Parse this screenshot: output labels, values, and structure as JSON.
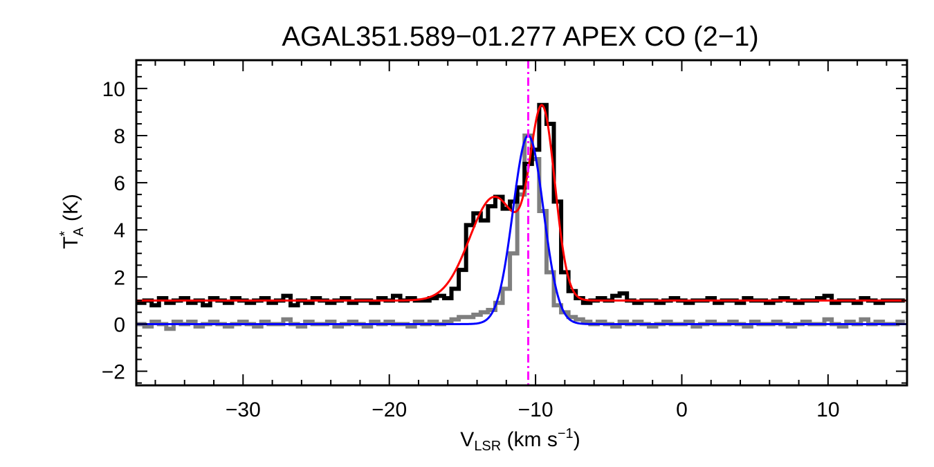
{
  "chart_data": {
    "type": "line",
    "title": "AGAL351.589−01.277  APEX CO (2−1)",
    "xlabel": {
      "main": "V",
      "sub": "LSR",
      "rest": " (km s",
      "sup": "−1",
      "end": ")"
    },
    "ylabel": {
      "main": "T",
      "sup": "*",
      "sub": "A",
      "rest": " (K)"
    },
    "xlim": [
      -37.3,
      15.4
    ],
    "ylim": [
      -2.6,
      11.2
    ],
    "xticks": [
      -30,
      -20,
      -10,
      0,
      10
    ],
    "xtick_labels": [
      "−30",
      "−20",
      "−10",
      "0",
      "10"
    ],
    "yticks": [
      -2,
      0,
      2,
      4,
      6,
      8,
      10
    ],
    "ytick_labels": [
      "−2",
      "0",
      "2",
      "4",
      "6",
      "8",
      "10"
    ],
    "grid": false,
    "velocity_start_kms": -37,
    "channel_width_kms": 0.5,
    "series": [
      {
        "style": "histogram",
        "color": "#000000",
        "values": [
          0.9,
          1.0,
          0.8,
          1.1,
          0.9,
          1.0,
          1.1,
          0.9,
          1.0,
          0.8,
          1.1,
          1.0,
          0.9,
          1.1,
          1.0,
          0.9,
          1.0,
          1.1,
          0.9,
          1.0,
          1.2,
          0.8,
          1.0,
          0.9,
          1.1,
          1.0,
          0.9,
          1.0,
          1.1,
          0.9,
          1.0,
          1.0,
          0.9,
          1.1,
          1.0,
          1.2,
          1.0,
          1.1,
          1.0,
          1.0,
          1.1,
          1.2,
          1.1,
          1.5,
          2.3,
          4.2,
          4.7,
          4.4,
          5.0,
          5.4,
          4.9,
          5.2,
          5.8,
          6.8,
          7.4,
          9.3,
          8.5,
          5.2,
          2.2,
          1.4,
          1.1,
          0.9,
          1.0,
          1.1,
          1.0,
          1.2,
          1.3,
          1.0,
          0.9,
          1.0,
          1.0,
          0.9,
          1.0,
          1.1,
          1.0,
          0.9,
          1.0,
          1.0,
          1.1,
          0.9,
          1.0,
          1.0,
          0.9,
          1.1,
          1.0,
          1.0,
          0.9,
          1.0,
          1.1,
          1.0,
          0.9,
          1.0,
          1.0,
          1.1,
          1.2,
          0.9,
          1.0,
          1.0,
          0.9,
          1.1,
          1.0,
          0.9,
          1.0,
          1.0,
          1.0
        ]
      },
      {
        "style": "histogram",
        "color": "#7f7f7f",
        "values": [
          0.0,
          -0.1,
          0.1,
          0.0,
          -0.2,
          0.1,
          0.0,
          0.1,
          -0.1,
          0.0,
          0.1,
          0.0,
          -0.1,
          0.0,
          0.1,
          0.0,
          -0.1,
          0.1,
          0.0,
          0.0,
          0.2,
          0.0,
          -0.1,
          0.1,
          0.0,
          0.0,
          0.1,
          -0.1,
          0.0,
          0.1,
          0.0,
          -0.1,
          0.1,
          0.0,
          0.1,
          0.0,
          0.0,
          -0.1,
          0.1,
          0.0,
          0.1,
          0.0,
          0.1,
          0.2,
          0.3,
          0.3,
          0.4,
          0.5,
          0.6,
          0.9,
          1.5,
          3.0,
          5.5,
          8.0,
          7.0,
          4.8,
          2.2,
          0.8,
          0.5,
          0.3,
          0.2,
          0.1,
          0.0,
          0.1,
          0.0,
          -0.1,
          0.1,
          0.0,
          0.1,
          0.0,
          -0.1,
          0.0,
          0.1,
          0.0,
          0.0,
          0.1,
          -0.1,
          0.0,
          0.1,
          0.0,
          0.0,
          0.1,
          0.0,
          -0.1,
          0.1,
          0.0,
          0.0,
          0.1,
          0.0,
          -0.1,
          0.0,
          0.1,
          0.0,
          0.0,
          0.2,
          0.0,
          -0.1,
          0.1,
          0.0,
          0.2,
          0.0,
          0.1,
          0.0,
          0.0,
          0.1
        ]
      }
    ],
    "fits": [
      {
        "color": "#ff0000",
        "baseline": 1.0,
        "components": [
          {
            "amplitude": 4.4,
            "center": -12.8,
            "sigma": 1.7
          },
          {
            "amplitude": 7.6,
            "center": -9.5,
            "sigma": 0.85
          }
        ]
      },
      {
        "color": "#0000ff",
        "baseline": 0.0,
        "components": [
          {
            "amplitude": 8.0,
            "center": -10.5,
            "sigma": 1.04
          }
        ]
      }
    ],
    "vline": {
      "x": -10.5,
      "color": "#ff00ff",
      "style": "dash-dot"
    }
  }
}
